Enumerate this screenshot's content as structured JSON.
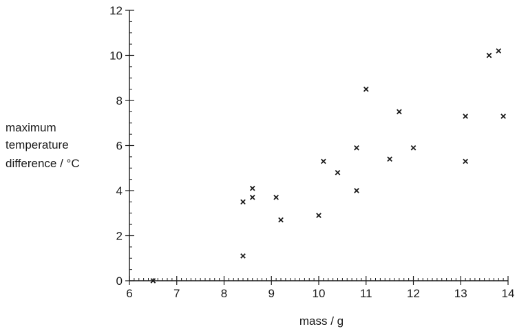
{
  "chart_data": {
    "type": "scatter",
    "title": "",
    "xlabel": "mass / g",
    "ylabel_lines": [
      "maximum",
      "temperature",
      "difference / °C"
    ],
    "xlim": [
      6,
      14
    ],
    "ylim": [
      0,
      12
    ],
    "x_ticks": [
      6,
      7,
      8,
      9,
      10,
      11,
      12,
      13,
      14
    ],
    "y_ticks": [
      0,
      2,
      4,
      6,
      8,
      10,
      12
    ],
    "grid": false,
    "marker": "x",
    "points": [
      {
        "x": 6.5,
        "y": 0.0
      },
      {
        "x": 8.4,
        "y": 1.1
      },
      {
        "x": 8.4,
        "y": 3.5
      },
      {
        "x": 8.6,
        "y": 3.7
      },
      {
        "x": 8.6,
        "y": 4.1
      },
      {
        "x": 9.1,
        "y": 3.7
      },
      {
        "x": 9.2,
        "y": 2.7
      },
      {
        "x": 10.0,
        "y": 2.9
      },
      {
        "x": 10.1,
        "y": 5.3
      },
      {
        "x": 10.4,
        "y": 4.8
      },
      {
        "x": 10.8,
        "y": 4.0
      },
      {
        "x": 10.8,
        "y": 5.9
      },
      {
        "x": 11.0,
        "y": 8.5
      },
      {
        "x": 11.5,
        "y": 5.4
      },
      {
        "x": 11.7,
        "y": 7.5
      },
      {
        "x": 12.0,
        "y": 5.9
      },
      {
        "x": 13.1,
        "y": 5.3
      },
      {
        "x": 13.1,
        "y": 7.3
      },
      {
        "x": 13.6,
        "y": 10.0
      },
      {
        "x": 13.8,
        "y": 10.2
      },
      {
        "x": 13.9,
        "y": 7.3
      }
    ]
  }
}
